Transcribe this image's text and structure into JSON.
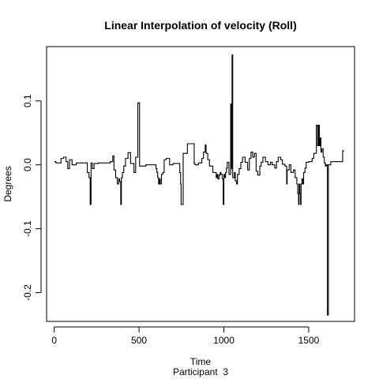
{
  "chart_data": {
    "type": "line",
    "title": "Linear Interpolation of velocity (Roll)",
    "xlabel": "Time",
    "subtitle": "Participant  3",
    "ylabel": "Degrees",
    "xlim": [
      -45,
      1770
    ],
    "ylim": [
      -0.245,
      0.185
    ],
    "xticks": [
      0,
      500,
      1000,
      1500
    ],
    "xtick_labels": [
      "0",
      "500",
      "1000",
      "1500"
    ],
    "yticks": [
      -0.2,
      -0.1,
      0.0,
      0.1
    ],
    "ytick_labels": [
      "-0.2",
      "-0.1",
      "0.0",
      "0.1"
    ],
    "grid": false,
    "legend": "none",
    "series": [
      {
        "color": "#000000",
        "points": [
          [
            0,
            0.005
          ],
          [
            10,
            0.005
          ],
          [
            10,
            0.003
          ],
          [
            40,
            0.003
          ],
          [
            40,
            0.01
          ],
          [
            55,
            0.01
          ],
          [
            55,
            0.012
          ],
          [
            70,
            0.012
          ],
          [
            70,
            0.005
          ],
          [
            80,
            0.005
          ],
          [
            80,
            -0.006
          ],
          [
            90,
            -0.006
          ],
          [
            90,
            0.008
          ],
          [
            105,
            0.008
          ],
          [
            105,
            0.0
          ],
          [
            130,
            0.0
          ],
          [
            130,
            0.003
          ],
          [
            195,
            0.003
          ],
          [
            195,
            -0.012
          ],
          [
            205,
            -0.012
          ],
          [
            205,
            -0.02
          ],
          [
            212,
            -0.02
          ],
          [
            212,
            -0.062
          ],
          [
            217,
            -0.062
          ],
          [
            217,
            0.003
          ],
          [
            225,
            0.003
          ],
          [
            225,
            -0.006
          ],
          [
            235,
            -0.006
          ],
          [
            235,
            0.002
          ],
          [
            260,
            0.002
          ],
          [
            260,
            0.003
          ],
          [
            330,
            0.003
          ],
          [
            330,
            0.005
          ],
          [
            345,
            0.005
          ],
          [
            345,
            0.014
          ],
          [
            352,
            0.014
          ],
          [
            352,
            -0.008
          ],
          [
            362,
            -0.008
          ],
          [
            362,
            -0.02
          ],
          [
            372,
            -0.02
          ],
          [
            372,
            -0.03
          ],
          [
            380,
            -0.03
          ],
          [
            380,
            -0.022
          ],
          [
            385,
            -0.022
          ],
          [
            385,
            -0.026
          ],
          [
            392,
            -0.026
          ],
          [
            392,
            -0.062
          ],
          [
            396,
            -0.062
          ],
          [
            396,
            -0.02
          ],
          [
            402,
            -0.02
          ],
          [
            402,
            -0.012
          ],
          [
            410,
            -0.012
          ],
          [
            410,
            -0.002
          ],
          [
            420,
            -0.002
          ],
          [
            420,
            0.01
          ],
          [
            435,
            0.01
          ],
          [
            435,
            0.019
          ],
          [
            450,
            0.019
          ],
          [
            450,
            0.002
          ],
          [
            470,
            0.002
          ],
          [
            470,
            -0.012
          ],
          [
            480,
            -0.012
          ],
          [
            480,
            0.012
          ],
          [
            493,
            0.012
          ],
          [
            493,
            0.097
          ],
          [
            503,
            0.097
          ],
          [
            503,
            -0.002
          ],
          [
            512,
            -0.002
          ],
          [
            512,
            -0.002
          ],
          [
            540,
            -0.002
          ],
          [
            540,
            0.0
          ],
          [
            600,
            0.0
          ],
          [
            600,
            -0.006
          ],
          [
            605,
            -0.006
          ],
          [
            605,
            -0.012
          ],
          [
            610,
            -0.012
          ],
          [
            610,
            -0.02
          ],
          [
            615,
            -0.02
          ],
          [
            615,
            -0.03
          ],
          [
            620,
            -0.03
          ],
          [
            620,
            -0.022
          ],
          [
            625,
            -0.022
          ],
          [
            625,
            -0.03
          ],
          [
            632,
            -0.03
          ],
          [
            632,
            -0.015
          ],
          [
            640,
            -0.015
          ],
          [
            640,
            -0.012
          ],
          [
            648,
            -0.012
          ],
          [
            648,
            0.008
          ],
          [
            660,
            0.008
          ],
          [
            660,
            0.01
          ],
          [
            680,
            0.01
          ],
          [
            680,
            0.0
          ],
          [
            700,
            0.0
          ],
          [
            700,
            0.002
          ],
          [
            740,
            0.002
          ],
          [
            740,
            -0.012
          ],
          [
            745,
            -0.012
          ],
          [
            745,
            -0.03
          ],
          [
            748,
            -0.03
          ],
          [
            748,
            -0.062
          ],
          [
            760,
            -0.062
          ],
          [
            760,
            0.018
          ],
          [
            785,
            0.018
          ],
          [
            785,
            0.033
          ],
          [
            825,
            0.033
          ],
          [
            825,
            0.002
          ],
          [
            830,
            0.002
          ],
          [
            830,
            0.0
          ],
          [
            850,
            0.0
          ],
          [
            850,
            0.003
          ],
          [
            870,
            0.003
          ],
          [
            870,
            0.01
          ],
          [
            880,
            0.01
          ],
          [
            880,
            0.02
          ],
          [
            890,
            0.02
          ],
          [
            890,
            0.031
          ],
          [
            895,
            0.031
          ],
          [
            895,
            0.018
          ],
          [
            905,
            0.018
          ],
          [
            905,
            0.008
          ],
          [
            915,
            0.008
          ],
          [
            915,
            -0.002
          ],
          [
            935,
            -0.002
          ],
          [
            935,
            -0.012
          ],
          [
            955,
            -0.012
          ],
          [
            955,
            -0.02
          ],
          [
            960,
            -0.02
          ],
          [
            960,
            -0.015
          ],
          [
            965,
            -0.015
          ],
          [
            965,
            -0.022
          ],
          [
            972,
            -0.022
          ],
          [
            972,
            -0.016
          ],
          [
            978,
            -0.016
          ],
          [
            978,
            -0.012
          ],
          [
            983,
            -0.012
          ],
          [
            983,
            -0.015
          ],
          [
            990,
            -0.015
          ],
          [
            990,
            -0.022
          ],
          [
            996,
            -0.022
          ],
          [
            996,
            -0.062
          ],
          [
            1000,
            -0.062
          ],
          [
            1000,
            -0.015
          ],
          [
            1005,
            -0.015
          ],
          [
            1005,
            -0.02
          ],
          [
            1010,
            -0.02
          ],
          [
            1010,
            -0.012
          ],
          [
            1015,
            -0.012
          ],
          [
            1015,
            -0.005
          ],
          [
            1020,
            -0.005
          ],
          [
            1020,
            0.004
          ],
          [
            1030,
            0.004
          ],
          [
            1030,
            -0.015
          ],
          [
            1040,
            -0.015
          ],
          [
            1040,
            0.095
          ],
          [
            1045,
            0.095
          ],
          [
            1045,
            -0.006
          ],
          [
            1048,
            -0.006
          ],
          [
            1048,
            0.172
          ],
          [
            1052,
            0.172
          ],
          [
            1052,
            -0.02
          ],
          [
            1062,
            -0.02
          ],
          [
            1062,
            -0.012
          ],
          [
            1067,
            -0.012
          ],
          [
            1067,
            -0.025
          ],
          [
            1075,
            -0.025
          ],
          [
            1075,
            -0.03
          ],
          [
            1080,
            -0.03
          ],
          [
            1080,
            -0.015
          ],
          [
            1090,
            -0.015
          ],
          [
            1090,
            -0.006
          ],
          [
            1100,
            -0.006
          ],
          [
            1100,
            0.004
          ],
          [
            1110,
            0.004
          ],
          [
            1110,
            0.012
          ],
          [
            1125,
            0.012
          ],
          [
            1125,
            0.004
          ],
          [
            1140,
            0.004
          ],
          [
            1140,
            -0.008
          ],
          [
            1150,
            -0.008
          ],
          [
            1150,
            0.01
          ],
          [
            1160,
            0.01
          ],
          [
            1160,
            0.02
          ],
          [
            1170,
            0.02
          ],
          [
            1170,
            0.012
          ],
          [
            1180,
            0.012
          ],
          [
            1180,
            0.018
          ],
          [
            1190,
            0.018
          ],
          [
            1190,
            -0.01
          ],
          [
            1200,
            -0.01
          ],
          [
            1200,
            -0.016
          ],
          [
            1212,
            -0.016
          ],
          [
            1212,
            -0.002
          ],
          [
            1220,
            -0.002
          ],
          [
            1220,
            0.004
          ],
          [
            1230,
            0.004
          ],
          [
            1230,
            0.012
          ],
          [
            1245,
            0.012
          ],
          [
            1245,
            0.005
          ],
          [
            1260,
            0.005
          ],
          [
            1260,
            0.0
          ],
          [
            1275,
            0.0
          ],
          [
            1275,
            0.004
          ],
          [
            1285,
            0.004
          ],
          [
            1285,
            0.0
          ],
          [
            1300,
            0.0
          ],
          [
            1300,
            -0.005
          ],
          [
            1310,
            -0.005
          ],
          [
            1310,
            0.005
          ],
          [
            1320,
            0.005
          ],
          [
            1320,
            0.012
          ],
          [
            1335,
            0.012
          ],
          [
            1335,
            0.008
          ],
          [
            1345,
            0.008
          ],
          [
            1345,
            0.001
          ],
          [
            1360,
            0.001
          ],
          [
            1360,
            -0.002
          ],
          [
            1370,
            -0.002
          ],
          [
            1370,
            -0.03
          ],
          [
            1373,
            -0.03
          ],
          [
            1373,
            -0.008
          ],
          [
            1385,
            -0.008
          ],
          [
            1385,
            0.0
          ],
          [
            1395,
            0.0
          ],
          [
            1395,
            -0.012
          ],
          [
            1410,
            -0.012
          ],
          [
            1410,
            -0.008
          ],
          [
            1420,
            -0.008
          ],
          [
            1420,
            -0.02
          ],
          [
            1430,
            -0.02
          ],
          [
            1430,
            -0.03
          ],
          [
            1435,
            -0.03
          ],
          [
            1435,
            -0.045
          ],
          [
            1440,
            -0.045
          ],
          [
            1440,
            -0.062
          ],
          [
            1443,
            -0.062
          ],
          [
            1443,
            -0.03
          ],
          [
            1448,
            -0.03
          ],
          [
            1448,
            -0.045
          ],
          [
            1452,
            -0.045
          ],
          [
            1452,
            -0.062
          ],
          [
            1455,
            -0.062
          ],
          [
            1455,
            -0.03
          ],
          [
            1460,
            -0.03
          ],
          [
            1460,
            -0.022
          ],
          [
            1466,
            -0.022
          ],
          [
            1466,
            -0.03
          ],
          [
            1470,
            -0.03
          ],
          [
            1470,
            -0.012
          ],
          [
            1478,
            -0.012
          ],
          [
            1478,
            -0.005
          ],
          [
            1485,
            -0.005
          ],
          [
            1485,
            0.004
          ],
          [
            1500,
            0.004
          ],
          [
            1500,
            0.005
          ],
          [
            1520,
            0.005
          ],
          [
            1520,
            0.01
          ],
          [
            1530,
            0.01
          ],
          [
            1530,
            0.018
          ],
          [
            1545,
            0.018
          ],
          [
            1545,
            0.062
          ],
          [
            1552,
            0.062
          ],
          [
            1552,
            0.03
          ],
          [
            1558,
            0.03
          ],
          [
            1558,
            0.062
          ],
          [
            1563,
            0.062
          ],
          [
            1563,
            0.03
          ],
          [
            1568,
            0.03
          ],
          [
            1568,
            0.042
          ],
          [
            1572,
            0.042
          ],
          [
            1572,
            0.02
          ],
          [
            1578,
            0.02
          ],
          [
            1578,
            0.025
          ],
          [
            1585,
            0.025
          ],
          [
            1585,
            0.012
          ],
          [
            1592,
            0.012
          ],
          [
            1592,
            0.003
          ],
          [
            1598,
            0.003
          ],
          [
            1598,
            -0.002
          ],
          [
            1603,
            -0.002
          ],
          [
            1603,
            0.0
          ],
          [
            1610,
            0.0
          ],
          [
            1610,
            -0.235
          ],
          [
            1616,
            -0.235
          ],
          [
            1616,
            0.0
          ],
          [
            1630,
            0.0
          ],
          [
            1630,
            0.005
          ],
          [
            1700,
            0.005
          ],
          [
            1700,
            0.022
          ],
          [
            1710,
            0.022
          ]
        ]
      }
    ]
  }
}
